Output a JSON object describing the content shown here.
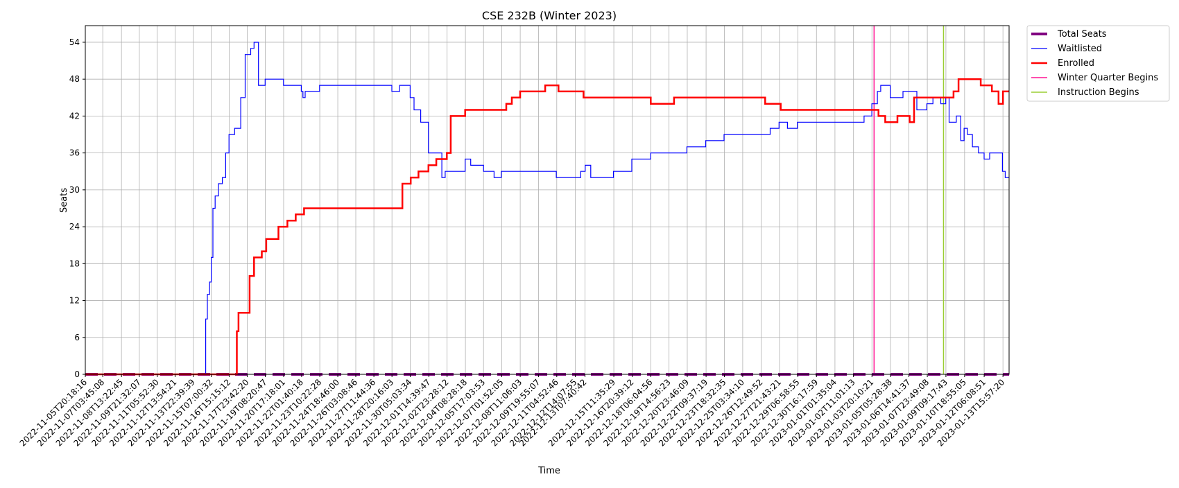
{
  "chart_data": {
    "type": "line",
    "title": "CSE 232B (Winter 2023)",
    "xlabel": "Time",
    "ylabel": "Seats",
    "ylim": [
      0,
      56.7
    ],
    "y_ticks": [
      0,
      6,
      12,
      18,
      24,
      30,
      36,
      42,
      48,
      54
    ],
    "grid": true,
    "legend_position": "outside-top-right",
    "x_start": "2022-11-05T20:18:16",
    "x_end": "2023-01-14T03:00:00",
    "x_tick_labels": [
      "2022-11-05T20:18:16",
      "2022-11-07T03:45:08",
      "2022-11-08T13:22:45",
      "2022-11-09T21:32:07",
      "2022-11-11T05:52:30",
      "2022-11-12T13:54:21",
      "2022-11-13T22:39:39",
      "2022-11-15T07:00:32",
      "2022-11-16T15:15:12",
      "2022-11-17T23:42:20",
      "2022-11-19T08:20:47",
      "2022-11-20T17:18:01",
      "2022-11-22T01:40:18",
      "2022-11-23T10:22:28",
      "2022-11-24T18:46:00",
      "2022-11-26T03:08:46",
      "2022-11-27T11:44:36",
      "2022-11-28T20:16:03",
      "2022-11-30T05:03:34",
      "2022-12-01T14:39:47",
      "2022-12-02T23:28:12",
      "2022-12-04T08:28:18",
      "2022-12-05T17:03:53",
      "2022-12-07T01:52:05",
      "2022-12-08T11:06:03",
      "2022-12-09T19:55:07",
      "2022-12-11T04:52:46",
      "2022-12-12T14:07:55",
      "2022-12-13T07:40:42",
      "2022-12-15T11:35:29",
      "2022-12-16T20:39:12",
      "2022-12-18T06:04:56",
      "2022-12-19T14:56:23",
      "2022-12-20T23:46:09",
      "2022-12-22T09:37:19",
      "2022-12-23T18:32:35",
      "2022-12-25T03:34:10",
      "2022-12-26T12:49:52",
      "2022-12-27T21:43:21",
      "2022-12-29T06:58:55",
      "2022-12-30T16:17:59",
      "2023-01-01T01:35:04",
      "2023-01-02T11:01:13",
      "2023-01-03T20:10:21",
      "2023-01-05T05:28:38",
      "2023-01-06T14:41:37",
      "2023-01-07T23:49:08",
      "2023-01-09T09:17:43",
      "2023-01-10T18:55:05",
      "2023-01-12T06:08:51",
      "2023-01-13T15:57:20"
    ],
    "series": [
      {
        "name": "Total Seats",
        "color": "#800080",
        "style": "dashed",
        "x": [
          "2022-11-05T20:18:16",
          "2023-01-14T03:00:00"
        ],
        "y": [
          0,
          0
        ]
      },
      {
        "name": "Waitlisted",
        "color": "#0000ff",
        "style": "thin",
        "x": [
          "2022-11-05T20:18:16",
          "2022-11-14T20:00:00",
          "2022-11-14T21:00:00",
          "2022-11-15T00:00:00",
          "2022-11-15T04:00:00",
          "2022-11-15T07:00:00",
          "2022-11-15T10:00:00",
          "2022-11-15T14:00:00",
          "2022-11-15T20:00:00",
          "2022-11-16T03:00:00",
          "2022-11-16T09:00:00",
          "2022-11-16T15:00:00",
          "2022-11-17T01:00:00",
          "2022-11-17T08:00:00",
          "2022-11-17T12:00:00",
          "2022-11-17T20:00:00",
          "2022-11-18T06:00:00",
          "2022-11-18T12:00:00",
          "2022-11-18T20:00:00",
          "2022-11-19T08:00:00",
          "2022-11-20T17:00:00",
          "2022-11-22T01:00:00",
          "2022-11-22T04:00:00",
          "2022-11-22T08:00:00",
          "2022-11-23T10:00:00",
          "2022-11-24T00:00:00",
          "2022-11-28T20:00:00",
          "2022-11-29T10:00:00",
          "2022-11-30T00:00:00",
          "2022-11-30T05:00:00",
          "2022-11-30T12:00:00",
          "2022-12-01T00:00:00",
          "2022-12-01T14:00:00",
          "2022-12-02T14:00:00",
          "2022-12-02T20:00:00",
          "2022-12-04T08:00:00",
          "2022-12-04T18:00:00",
          "2022-12-05T17:00:00",
          "2022-12-06T12:00:00",
          "2022-12-07T01:00:00",
          "2022-12-07T12:00:00",
          "2022-12-08T00:00:00",
          "2022-12-09T19:00:00",
          "2022-12-11T04:00:00",
          "2022-12-12T14:00:00",
          "2022-12-13T00:00:00",
          "2022-12-13T08:00:00",
          "2022-12-13T18:00:00",
          "2022-12-15T11:00:00",
          "2022-12-16T20:00:00",
          "2022-12-18T06:00:00",
          "2022-12-19T14:00:00",
          "2022-12-20T23:00:00",
          "2022-12-22T09:00:00",
          "2022-12-23T18:00:00",
          "2022-12-25T03:00:00",
          "2022-12-26T12:00:00",
          "2022-12-27T05:00:00",
          "2022-12-27T21:00:00",
          "2022-12-28T12:00:00",
          "2022-12-29T06:00:00",
          "2022-12-30T16:00:00",
          "2023-01-01T01:00:00",
          "2023-01-02T11:00:00",
          "2023-01-03T06:00:00",
          "2023-01-03T20:00:00",
          "2023-01-04T06:00:00",
          "2023-01-04T12:00:00",
          "2023-01-05T05:00:00",
          "2023-01-06T04:00:00",
          "2023-01-06T14:00:00",
          "2023-01-07T05:00:00",
          "2023-01-07T23:00:00",
          "2023-01-08T10:00:00",
          "2023-01-09T00:00:00",
          "2023-01-09T09:00:00",
          "2023-01-09T15:00:00",
          "2023-01-10T04:00:00",
          "2023-01-10T12:00:00",
          "2023-01-10T18:00:00",
          "2023-01-11T00:00:00",
          "2023-01-11T09:00:00",
          "2023-01-11T20:00:00",
          "2023-01-12T06:00:00",
          "2023-01-12T16:00:00",
          "2023-01-13T05:00:00",
          "2023-01-13T15:00:00",
          "2023-01-13T20:00:00",
          "2023-01-14T03:00:00"
        ],
        "y": [
          0,
          0,
          9,
          13,
          15,
          19,
          27,
          29,
          31,
          32,
          36,
          39,
          40,
          40,
          45,
          52,
          53,
          54,
          47,
          48,
          47,
          46,
          45,
          46,
          47,
          47,
          46,
          47,
          47,
          45,
          43,
          41,
          36,
          32,
          33,
          35,
          34,
          33,
          32,
          33,
          33,
          33,
          33,
          32,
          32,
          33,
          34,
          32,
          33,
          35,
          36,
          36,
          37,
          38,
          39,
          39,
          39,
          40,
          41,
          40,
          41,
          41,
          41,
          41,
          42,
          44,
          46,
          47,
          45,
          46,
          46,
          43,
          44,
          45,
          44,
          45,
          41,
          42,
          38,
          40,
          39,
          37,
          36,
          35,
          36,
          36,
          33,
          32,
          32
        ]
      },
      {
        "name": "Enrolled",
        "color": "#ff0000",
        "style": "thick",
        "x": [
          "2022-11-05T20:18:16",
          "2022-11-17T03:00:00",
          "2022-11-17T05:00:00",
          "2022-11-17T08:00:00",
          "2022-11-18T00:00:00",
          "2022-11-18T04:00:00",
          "2022-11-18T12:00:00",
          "2022-11-19T02:00:00",
          "2022-11-19T10:00:00",
          "2022-11-20T08:00:00",
          "2022-11-21T00:00:00",
          "2022-11-21T15:00:00",
          "2022-11-22T06:00:00",
          "2022-11-24T00:00:00",
          "2022-11-29T07:00:00",
          "2022-11-29T15:00:00",
          "2022-11-30T06:00:00",
          "2022-11-30T20:00:00",
          "2022-12-01T14:00:00",
          "2022-12-02T04:00:00",
          "2022-12-02T23:00:00",
          "2022-12-03T06:00:00",
          "2022-12-04T08:00:00",
          "2022-12-07T01:00:00",
          "2022-12-07T10:00:00",
          "2022-12-07T20:00:00",
          "2022-12-08T11:00:00",
          "2022-12-10T08:00:00",
          "2022-12-11T08:00:00",
          "2022-12-13T05:00:00",
          "2022-12-15T08:00:00",
          "2022-12-18T06:00:00",
          "2022-12-20T00:00:00",
          "2022-12-23T18:00:00",
          "2022-12-26T12:00:00",
          "2022-12-26T20:00:00",
          "2022-12-28T00:00:00",
          "2023-01-03T20:00:00",
          "2023-01-04T08:00:00",
          "2023-01-04T20:00:00",
          "2023-01-05T05:00:00",
          "2023-01-05T18:00:00",
          "2023-01-06T16:00:00",
          "2023-01-07T00:00:00",
          "2023-01-09T13:00:00",
          "2023-01-09T23:00:00",
          "2023-01-10T08:00:00",
          "2023-01-11T00:00:00",
          "2023-01-12T00:00:00",
          "2023-01-12T20:00:00",
          "2023-01-13T08:00:00",
          "2023-01-13T16:00:00",
          "2023-01-14T03:00:00"
        ],
        "y": [
          0,
          0,
          7,
          10,
          10,
          16,
          19,
          20,
          22,
          24,
          25,
          26,
          27,
          27,
          27,
          31,
          32,
          33,
          34,
          35,
          36,
          42,
          43,
          43,
          44,
          45,
          46,
          47,
          46,
          45,
          45,
          44,
          45,
          45,
          45,
          44,
          43,
          43,
          42,
          41,
          41,
          42,
          41,
          45,
          45,
          46,
          48,
          48,
          47,
          46,
          44,
          46,
          46
        ]
      }
    ],
    "vlines": [
      {
        "name": "Winter Quarter Begins",
        "color": "#ff1493",
        "x": "2023-01-04T00:00:00"
      },
      {
        "name": "Instruction Begins",
        "color": "#9acd32",
        "x": "2023-01-09T05:00:00"
      }
    ]
  }
}
